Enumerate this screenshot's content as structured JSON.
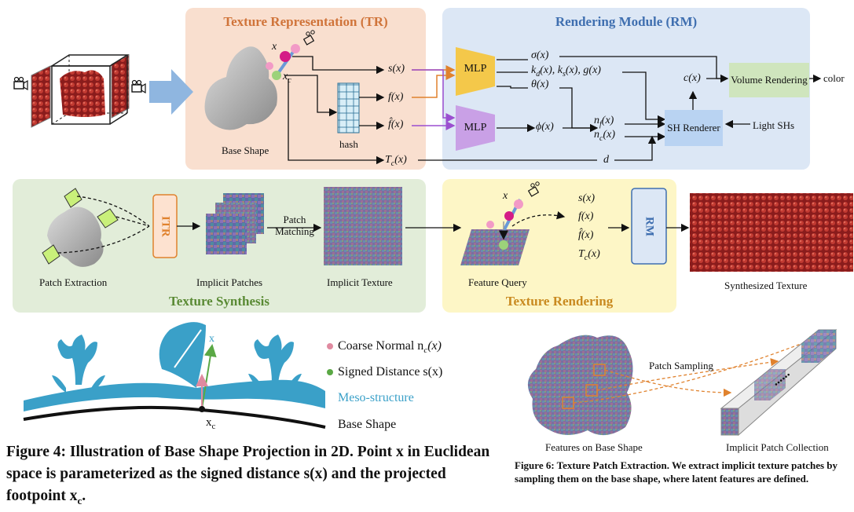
{
  "tr": {
    "title": "Texture Representation (TR)",
    "base_shape": "Base Shape",
    "x": "x",
    "xc": "x",
    "xc_sub": "c",
    "hash": "hash",
    "mlp": "MLP"
  },
  "rm": {
    "title": "Rendering Module (RM)",
    "mlp": "MLP",
    "volume_rendering": "Volume Rendering",
    "sh_renderer": "SH Renderer",
    "light_shs": "Light SHs",
    "color": "color",
    "sigma": "σ(x)",
    "kd": "k",
    "kd_rest": "(x), k",
    "ks_rest": "(x), g(x)",
    "theta": "θ(x)",
    "phi": "ϕ(x)",
    "cx": "c(x)",
    "nf": "n",
    "nc": "n",
    "xsuffix": "(x)",
    "d": "d"
  },
  "signals": {
    "s": "s(x)",
    "f": "f(x)",
    "fhat": "f̂(x)",
    "tc": "T",
    "tc_sub": "c",
    "tc_suffix": "(x)"
  },
  "synthesis": {
    "title": "Texture Synthesis",
    "itr": "ITR",
    "patch_extraction": "Patch Extraction",
    "implicit_patches": "Implicit Patches",
    "patch_matching": "Patch Matching",
    "implicit_texture": "Implicit Texture"
  },
  "rendering": {
    "title": "Texture Rendering",
    "feature_query": "Feature Query",
    "rm": "RM",
    "x": "x",
    "s": "s(x)",
    "f": "f(x)",
    "fhat": "f̂(x)",
    "tc": "T",
    "tc_sub": "c",
    "tc_suffix": "(x)",
    "synthesized": "Synthesized Texture"
  },
  "fig4": {
    "x": "x",
    "xc": "x",
    "xc_sub": "c",
    "legend_normal": "Coarse Normal n",
    "legend_normal_sub": "c",
    "legend_normal_suffix": "(x)",
    "legend_signed": "Signed Distance s(x)",
    "legend_meso": "Meso-structure",
    "legend_base": "Base Shape",
    "caption": "Figure 4: Illustration of Base Shape Projection in 2D. Point x in Euclidean space is parameterized as the signed distance s(x) and the projected footpoint x",
    "caption_sub": "c",
    "caption_end": ".",
    "colors": {
      "meso": "#3aa0c8",
      "normal": "#e08aa0",
      "signed": "#5aa845"
    }
  },
  "fig6": {
    "patch_sampling": "Patch Sampling",
    "features_label": "Features on Base Shape",
    "collection_label": "Implicit Patch Collection",
    "dots": "......",
    "caption": "Figure 6: Texture Patch Extraction. We extract implicit texture patches by sampling them on the base shape, where latent features are defined."
  },
  "colors": {
    "tr_bg": "#f9dfcf",
    "rm_bg": "#dce7f5",
    "synth_bg": "#e2edd9",
    "render_bg": "#fdf6c6",
    "tr_title": "#d0743a",
    "rm_title": "#3f6fb0",
    "synth_title": "#5a8a34",
    "render_title": "#c98a20",
    "mlp_yellow": "#f4c84a",
    "mlp_purple": "#c9a0e6",
    "volume_green": "#cfe5bd",
    "sh_blue": "#b9d3f2"
  }
}
